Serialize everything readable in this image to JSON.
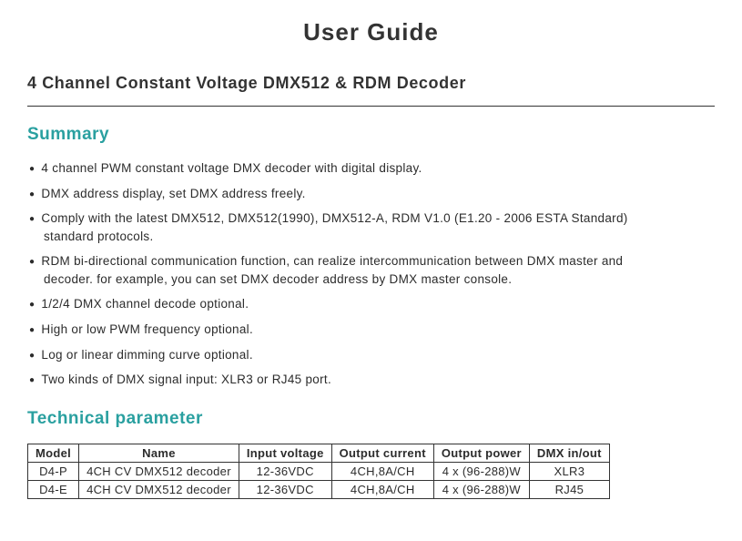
{
  "title": "User Guide",
  "subtitle": "4 Channel Constant Voltage DMX512 & RDM Decoder",
  "summary": {
    "heading": "Summary",
    "items": [
      {
        "text": "4 channel PWM constant voltage DMX decoder with digital display."
      },
      {
        "text": "DMX address display, set DMX address freely."
      },
      {
        "text": "Comply with the latest DMX512, DMX512(1990), DMX512-A, RDM V1.0 (E1.20 - 2006 ESTA Standard)",
        "sub": "standard protocols."
      },
      {
        "text": "RDM bi-directional communication function, can realize intercommunication between DMX master and",
        "sub": "decoder. for example, you can set DMX decoder address by DMX master console."
      },
      {
        "text": "1/2/4 DMX channel decode optional."
      },
      {
        "text": "High or low PWM frequency optional."
      },
      {
        "text": "Log or linear dimming curve optional."
      },
      {
        "text": "Two kinds of DMX signal input: XLR3 or RJ45 port."
      }
    ]
  },
  "technical": {
    "heading": "Technical parameter",
    "columns": [
      "Model",
      "Name",
      "Input voltage",
      "Output current",
      "Output power",
      "DMX in/out"
    ],
    "rows": [
      [
        "D4-P",
        "4CH CV DMX512 decoder",
        "12-36VDC",
        "4CH,8A/CH",
        "4 x (96-288)W",
        "XLR3"
      ],
      [
        "D4-E",
        "4CH CV DMX512 decoder",
        "12-36VDC",
        "4CH,8A/CH",
        "4 x (96-288)W",
        "RJ45"
      ]
    ]
  },
  "colors": {
    "heading_teal": "#2aa0a0",
    "text": "#2c2c2c",
    "rule": "#333333",
    "background": "#ffffff"
  }
}
